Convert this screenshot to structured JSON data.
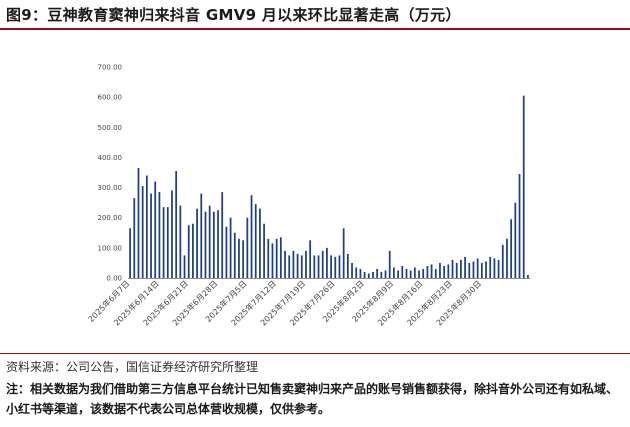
{
  "header": {
    "title": "图9：豆神教育窦神归来抖音 GMV9 月以来环比显著走高（万元）"
  },
  "footer": {
    "source": "资料来源：公司公告，国信证券经济研究所整理",
    "note": "注：相关数据为我们借助第三方信息平台统计已知售卖窦神归来产品的账号销售额获得，除抖音外公司还有如私域、小红书等渠道，该数据不代表公司总体营收规模，仅供参考。"
  },
  "chart_data": {
    "type": "bar",
    "color": "#1f3f80",
    "ylim": [
      0,
      700
    ],
    "yticks": [
      "0.00",
      "100.00",
      "200.00",
      "300.00",
      "400.00",
      "500.00",
      "600.00",
      "700.00"
    ],
    "xlabel": "",
    "ylabel": "",
    "grid": false,
    "x_start": "2025-06-07",
    "x_tick_labels": [
      "2025年6月7日",
      "2025年6月14日",
      "2025年6月21日",
      "2025年6月28日",
      "2025年7月5日",
      "2025年7月12日",
      "2025年7月19日",
      "2025年7月26日",
      "2025年8月2日",
      "2025年8月9日",
      "2025年8月16日",
      "2025年8月23日",
      "2025年8月30日"
    ],
    "values": [
      165,
      265,
      365,
      305,
      340,
      280,
      320,
      285,
      235,
      235,
      290,
      355,
      240,
      75,
      175,
      180,
      230,
      280,
      220,
      240,
      220,
      225,
      285,
      170,
      200,
      150,
      130,
      125,
      200,
      275,
      245,
      230,
      180,
      130,
      115,
      130,
      135,
      90,
      75,
      90,
      80,
      75,
      90,
      125,
      75,
      75,
      90,
      100,
      75,
      70,
      75,
      165,
      80,
      50,
      35,
      30,
      20,
      15,
      20,
      30,
      20,
      25,
      90,
      35,
      25,
      40,
      30,
      25,
      35,
      25,
      30,
      40,
      45,
      30,
      50,
      40,
      45,
      60,
      50,
      60,
      70,
      50,
      55,
      65,
      50,
      55,
      70,
      65,
      60,
      110,
      130,
      195,
      250,
      345,
      605,
      10
    ]
  }
}
